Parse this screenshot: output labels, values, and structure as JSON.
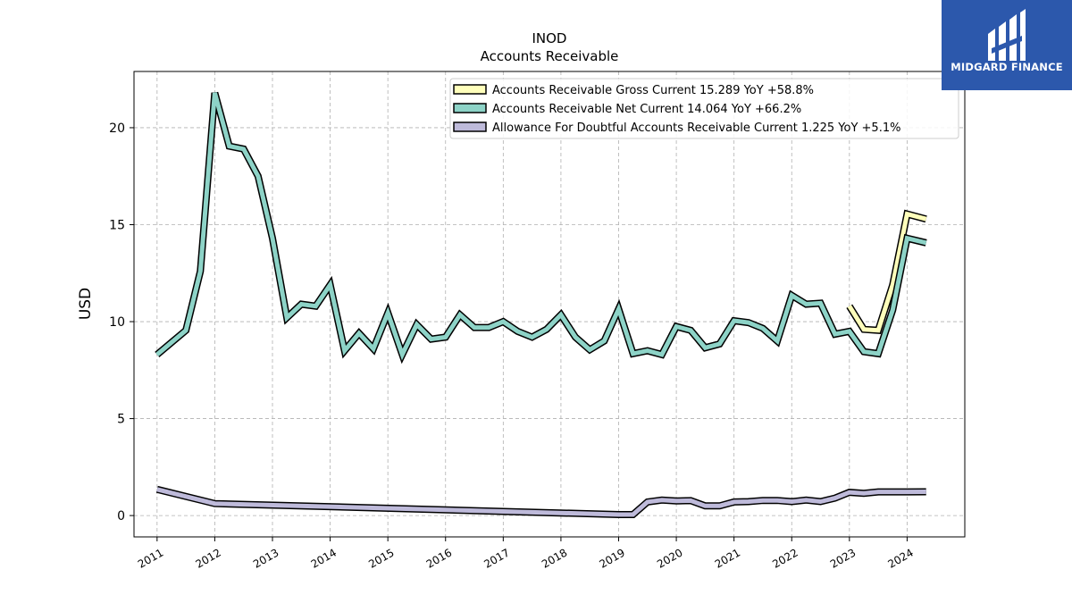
{
  "brand": {
    "name": "MIDGARD FINANCE",
    "bg_color": "#2c58ac"
  },
  "chart_data": {
    "type": "line",
    "title": "INOD",
    "subtitle": "Accounts Receivable",
    "xlabel": "",
    "ylabel": "USD",
    "ylim": [
      -1.1,
      22.9
    ],
    "xlim": [
      2010.6,
      2025.0
    ],
    "yticks": [
      0,
      5,
      10,
      15,
      20
    ],
    "xticks": [
      "2011",
      "2012",
      "2013",
      "2014",
      "2015",
      "2016",
      "2017",
      "2018",
      "2019",
      "2020",
      "2021",
      "2022",
      "2023",
      "2024"
    ],
    "grid": true,
    "legend_position": "top-right",
    "series": [
      {
        "name": "Accounts Receivable Gross Current",
        "legend_label": "Accounts Receivable Gross Current  15.289 YoY +58.8%",
        "color": "#ffffbb",
        "x": [
          2023.0,
          2023.25,
          2023.5,
          2023.75,
          2024.0,
          2024.33
        ],
        "y": [
          10.8,
          9.6,
          9.55,
          11.9,
          15.55,
          15.289
        ]
      },
      {
        "name": "Accounts Receivable Net Current",
        "legend_label": "Accounts Receivable Net Current  14.064 YoY +66.2%",
        "color": "#8dd3c7",
        "x": [
          2011.0,
          2011.5,
          2011.75,
          2012.0,
          2012.25,
          2012.5,
          2012.75,
          2013.0,
          2013.25,
          2013.5,
          2013.75,
          2014.0,
          2014.25,
          2014.5,
          2014.75,
          2015.0,
          2015.25,
          2015.5,
          2015.75,
          2016.0,
          2016.25,
          2016.5,
          2016.75,
          2017.0,
          2017.25,
          2017.5,
          2017.75,
          2018.0,
          2018.25,
          2018.5,
          2018.75,
          2019.0,
          2019.25,
          2019.5,
          2019.75,
          2020.0,
          2020.25,
          2020.5,
          2020.75,
          2021.0,
          2021.25,
          2021.5,
          2021.75,
          2022.0,
          2022.25,
          2022.5,
          2022.75,
          2023.0,
          2023.25,
          2023.5,
          2023.75,
          2024.0,
          2024.33
        ],
        "y": [
          8.3,
          9.55,
          12.6,
          21.8,
          19.05,
          18.9,
          17.5,
          14.3,
          10.2,
          10.9,
          10.8,
          11.9,
          8.5,
          9.4,
          8.6,
          10.45,
          8.3,
          9.85,
          9.1,
          9.2,
          10.35,
          9.7,
          9.7,
          10.0,
          9.5,
          9.2,
          9.6,
          10.35,
          9.2,
          8.55,
          9.0,
          10.65,
          8.35,
          8.5,
          8.3,
          9.75,
          9.55,
          8.65,
          8.85,
          10.05,
          9.95,
          9.65,
          9.0,
          11.35,
          10.9,
          10.95,
          9.35,
          9.5,
          8.45,
          8.35,
          10.6,
          14.3,
          14.064
        ]
      },
      {
        "name": "Allowance For Doubtful Accounts Receivable Current",
        "legend_label": "Allowance For Doubtful Accounts Receivable Current  1.225 YoY +5.1%",
        "color": "#bebada",
        "x": [
          2011.0,
          2012.0,
          2019.0,
          2019.25,
          2019.5,
          2019.75,
          2020.0,
          2020.25,
          2020.5,
          2020.75,
          2021.0,
          2021.25,
          2021.5,
          2021.75,
          2022.0,
          2022.25,
          2022.5,
          2022.75,
          2023.0,
          2023.25,
          2023.5,
          2023.75,
          2024.0,
          2024.33
        ],
        "y": [
          1.35,
          0.62,
          0.05,
          0.05,
          0.7,
          0.8,
          0.75,
          0.77,
          0.5,
          0.5,
          0.7,
          0.72,
          0.78,
          0.78,
          0.72,
          0.8,
          0.72,
          0.9,
          1.2,
          1.15,
          1.22,
          1.22,
          1.22,
          1.225
        ]
      }
    ]
  }
}
